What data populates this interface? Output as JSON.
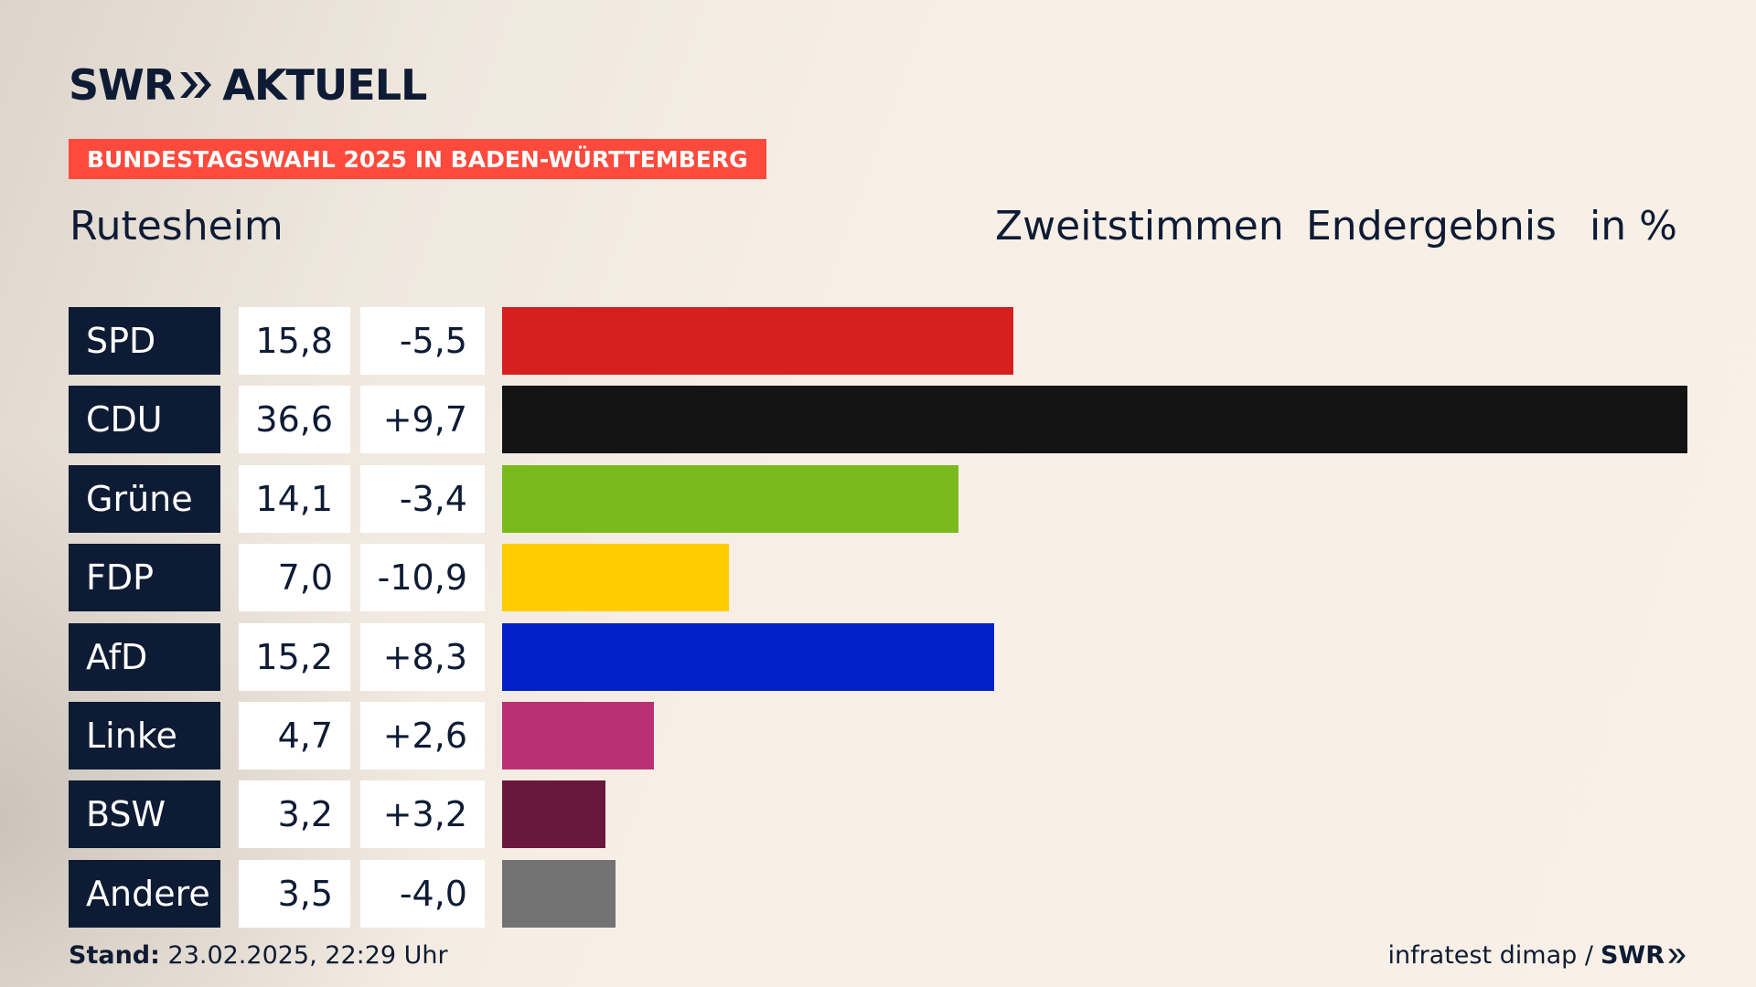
{
  "brand": {
    "name_left": "SWR",
    "name_right": "AKTUELL",
    "color": "#0e1b35"
  },
  "badge": {
    "text": "BUNDESTAGSWAHL 2025 IN BADEN-WÜRTTEMBERG",
    "color": "#fd4a3c"
  },
  "region": "Rutesheim",
  "header": {
    "vote_type": "Zweitstimmen",
    "status": "Endergebnis",
    "unit": "in %"
  },
  "chart_data": {
    "type": "bar",
    "orientation": "horizontal",
    "categories": [
      "SPD",
      "CDU",
      "Grüne",
      "FDP",
      "AfD",
      "Linke",
      "BSW",
      "Andere"
    ],
    "values": [
      15.8,
      36.6,
      14.1,
      7.0,
      15.2,
      4.7,
      3.2,
      3.5
    ],
    "values_label": [
      "15,8",
      "36,6",
      "14,1",
      "7,0",
      "15,2",
      "4,7",
      "3,2",
      "3,5"
    ],
    "changes": [
      -5.5,
      9.7,
      -3.4,
      -10.9,
      8.3,
      2.6,
      3.2,
      -4.0
    ],
    "changes_label": [
      "-5,5",
      "+9,7",
      "-3,4",
      "-10,9",
      "+8,3",
      "+2,6",
      "+3,2",
      "-4,0"
    ],
    "colors": [
      "#d61f1f",
      "#141414",
      "#79bb1d",
      "#ffcc00",
      "#0021c8",
      "#bb3075",
      "#6a173d",
      "#737373"
    ],
    "xlim": [
      0,
      36.6
    ]
  },
  "footer": {
    "stand_label": "Stand:",
    "stand_value": "23.02.2025, 22:29 Uhr",
    "source": "infratest dimap /",
    "source_brand": "SWR"
  }
}
